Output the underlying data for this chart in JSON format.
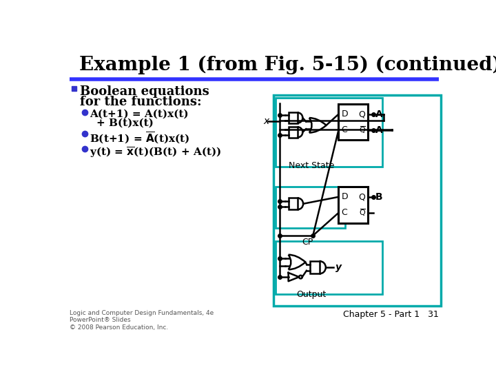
{
  "title": "Example 1 (from Fig. 5-15) (continued)",
  "title_color": "#000000",
  "title_fontsize": 20,
  "blue_line_color": "#3333FF",
  "bg_color": "#FFFFFF",
  "bullet_color": "#3333CC",
  "section_marker_color": "#3333CC",
  "teal_color": "#00AAAA",
  "bottom_left_text": "Logic and Computer Design Fundamentals, 4e\nPowerPoint® Slides\n© 2008 Pearson Education, Inc.",
  "bottom_right_text": "Chapter 5 - Part 1   31"
}
